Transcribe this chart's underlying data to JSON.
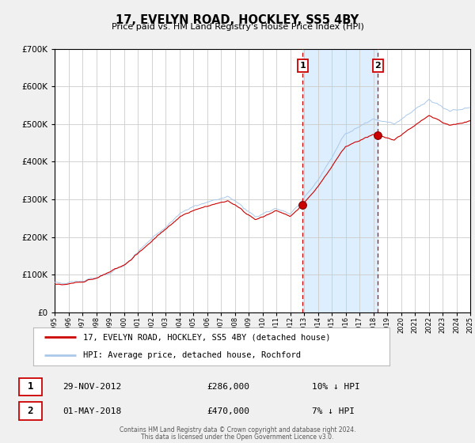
{
  "title": "17, EVELYN ROAD, HOCKLEY, SS5 4BY",
  "subtitle": "Price paid vs. HM Land Registry's House Price Index (HPI)",
  "legend_line1": "17, EVELYN ROAD, HOCKLEY, SS5 4BY (detached house)",
  "legend_line2": "HPI: Average price, detached house, Rochford",
  "sale1_date": "29-NOV-2012",
  "sale1_price": "£286,000",
  "sale1_pct": "10% ↓ HPI",
  "sale1_year": 2012.91,
  "sale1_value": 286000,
  "sale2_date": "01-MAY-2018",
  "sale2_price": "£470,000",
  "sale2_pct": "7% ↓ HPI",
  "sale2_year": 2018.33,
  "sale2_value": 470000,
  "xmin": 1995,
  "xmax": 2025,
  "ymin": 0,
  "ymax": 700000,
  "background_color": "#f0f0f0",
  "plot_bg_color": "#ffffff",
  "grid_color": "#cccccc",
  "hpi_color": "#aac8e8",
  "price_color": "#cc0000",
  "shade_color": "#ddeeff",
  "dashed_line_color": "#cc0000",
  "footnote1": "Contains HM Land Registry data © Crown copyright and database right 2024.",
  "footnote2": "This data is licensed under the Open Government Licence v3.0."
}
